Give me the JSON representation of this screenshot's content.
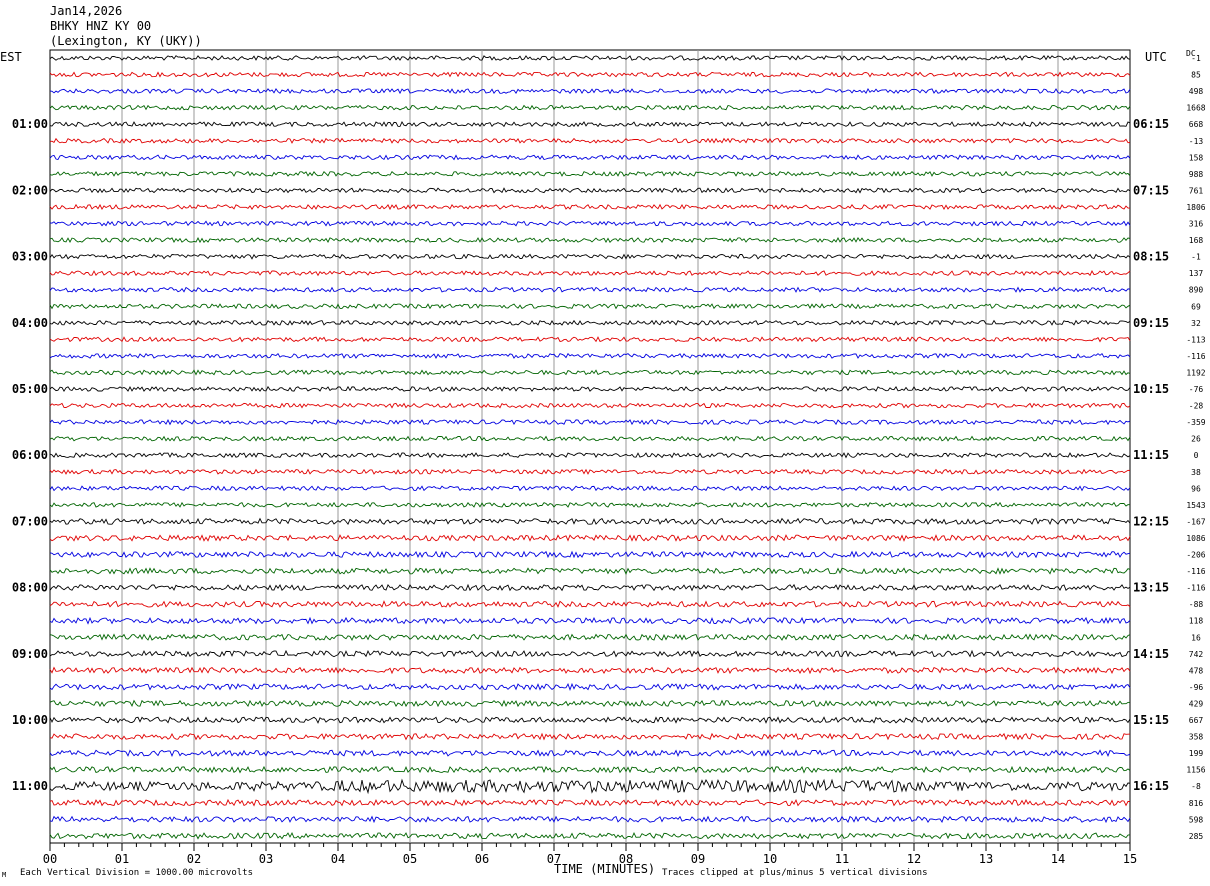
{
  "header": {
    "date": "Jan14,2026",
    "station": "BHKY HNZ KY 00",
    "location": "(Lexington, KY (UKY))"
  },
  "chart_data": {
    "type": "line",
    "left_tz": "EST",
    "right_tz": "UTC",
    "dc_label": "DC",
    "left_labels": [
      "01:00",
      "02:00",
      "03:00",
      "04:00",
      "05:00",
      "06:00",
      "07:00",
      "08:00",
      "09:00",
      "10:00",
      "11:00"
    ],
    "right_labels": [
      "06:15",
      "07:15",
      "08:15",
      "09:15",
      "10:15",
      "11:15",
      "12:15",
      "13:15",
      "14:15",
      "15:15",
      "16:15"
    ],
    "dc_values": [
      "-1",
      "85",
      "498",
      "1668",
      "668",
      "-13",
      "158",
      "988",
      "761",
      "1806",
      "316",
      "168",
      "-1",
      "137",
      "890",
      "69",
      "32",
      "-113",
      "-116",
      "1192",
      "-76",
      "-28",
      "-359",
      "26",
      "0",
      "38",
      "96",
      "1543",
      "-167",
      "1086",
      "-206",
      "-116",
      "-116",
      "-88",
      "118",
      "16",
      "742",
      "478",
      "-96",
      "429",
      "667",
      "358",
      "199",
      "1156",
      "-8",
      "816",
      "598",
      "285"
    ],
    "trace_colors": [
      "#000000",
      "#e00000",
      "#0000e0",
      "#006400"
    ],
    "trace_count": 48,
    "traces_per_hour": 4,
    "minutes_per_trace": 15,
    "x_ticks": [
      "00",
      "01",
      "02",
      "03",
      "04",
      "05",
      "06",
      "07",
      "08",
      "09",
      "10",
      "11",
      "12",
      "13",
      "14",
      "15"
    ],
    "x_range": [
      0,
      15
    ],
    "xlabel": "TIME (MINUTES)",
    "grid": true,
    "footer_left": "Each Vertical Division = 1000.00 microvolts",
    "footer_right": "Traces clipped at plus/minus 5 vertical divisions",
    "corner_mark": "M"
  }
}
